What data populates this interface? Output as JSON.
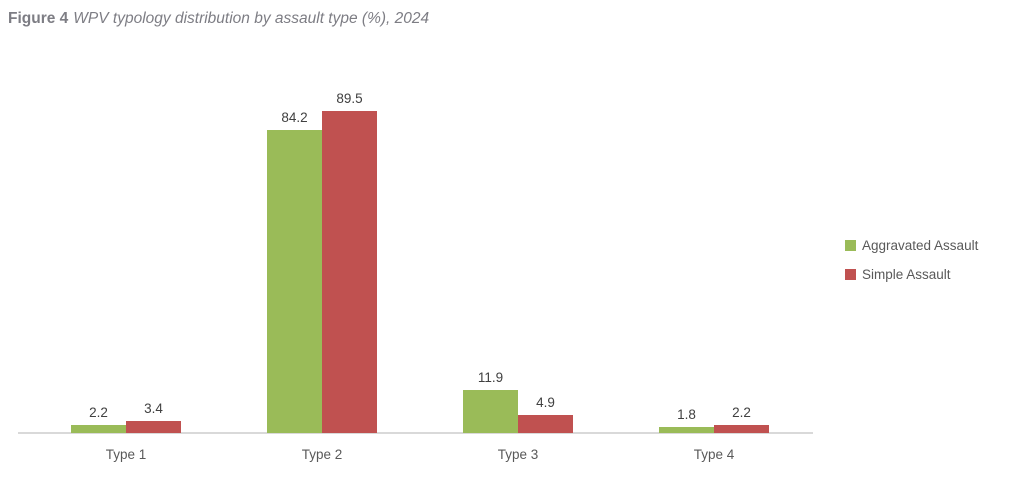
{
  "figure": {
    "title_prefix": "Figure 4",
    "title_rest": "WPV typology distribution by assault type (%), 2024"
  },
  "chart_data": {
    "type": "bar",
    "title": "WPV typology distribution by assault type (%), 2024",
    "categories": [
      "Type 1",
      "Type 2",
      "Type 3",
      "Type 4"
    ],
    "series": [
      {
        "name": "Aggravated Assault",
        "color": "#9ABB58",
        "values": [
          2.2,
          84.2,
          11.9,
          1.8
        ]
      },
      {
        "name": "Simple Assault",
        "color": "#C05150",
        "values": [
          3.4,
          89.5,
          4.9,
          2.2
        ]
      }
    ],
    "ylim": [
      0,
      100
    ],
    "grid": false,
    "y_axis_visible": false,
    "value_labels": true,
    "legend_position": "right",
    "axis_line_color": "#D9D9D9",
    "category_label_color": "#595959",
    "value_label_color": "#404040"
  }
}
